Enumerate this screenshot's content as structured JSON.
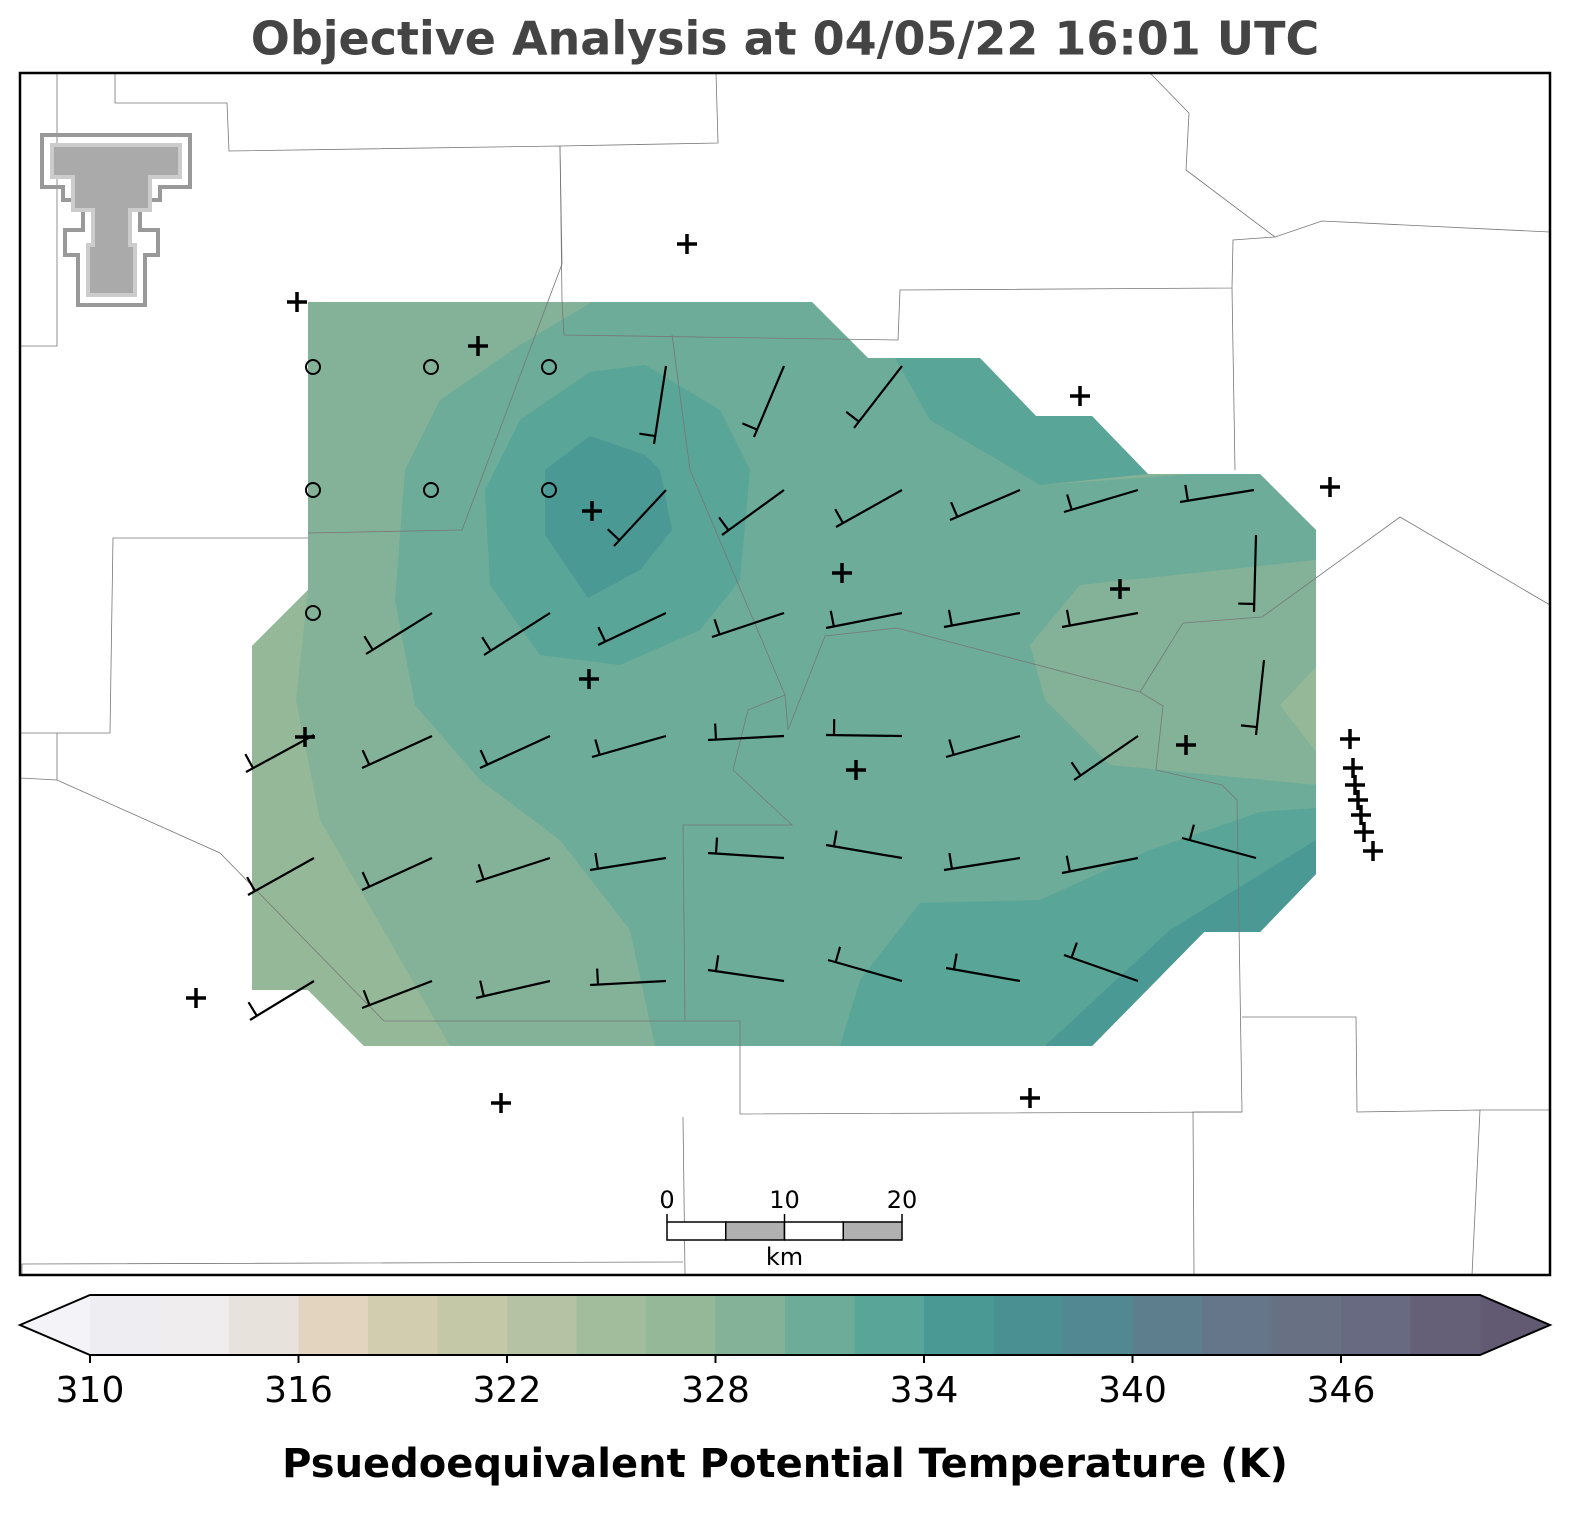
{
  "title": "Objective Analysis at 04/05/22 16:01 UTC",
  "colorbar": {
    "label": "Psuedoequivalent Potential Temperature (K)",
    "lim": [
      310,
      350
    ],
    "ticks": [
      310,
      316,
      322,
      328,
      334,
      340,
      346
    ],
    "colors": [
      "#eeedf2",
      "#efedee",
      "#e8e2dc",
      "#e3d4c0",
      "#d3cdb0",
      "#c5c8a6",
      "#b5c2a4",
      "#a2bd9b",
      "#95b998",
      "#83b298",
      "#6cac98",
      "#59a597",
      "#4b9995",
      "#4a9093",
      "#528891",
      "#5d7f8d",
      "#65768a",
      "#687084",
      "#676a80",
      "#655f78"
    ],
    "under_color": "#f4f3f8",
    "over_color": "#625a73"
  },
  "scale_bar": {
    "ticks": [
      0,
      10,
      20
    ],
    "unit": "km"
  }
}
